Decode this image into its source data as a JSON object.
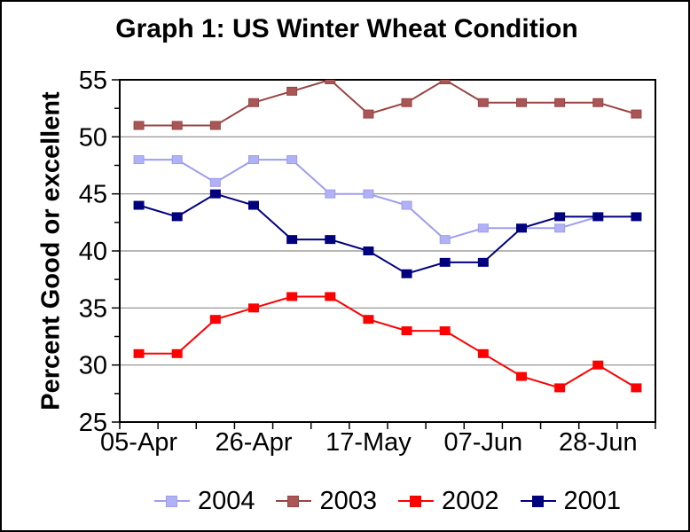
{
  "window": {
    "background": "#ffffff",
    "border_color": "#000000"
  },
  "chart_data": {
    "type": "line",
    "title": "Graph 1: US Winter Wheat Condition",
    "ylabel": "Percent Good or excellent",
    "xlabel": "",
    "ylim": [
      25,
      55
    ],
    "y_major_step": 5,
    "y_minor_step": 2.5,
    "n_points": 14,
    "x_tick_labels": [
      "05-Apr",
      "26-Apr",
      "17-May",
      "07-Jun",
      "28-Jun"
    ],
    "x_tick_indices": [
      0,
      3,
      6,
      9,
      12
    ],
    "grid": "horizontal major gridlines only",
    "gridline_color": "#8c8c8c",
    "axis_color": "#000000",
    "legend_position": "bottom",
    "series": [
      {
        "name": "2004",
        "color": "#9d9df0",
        "marker_fill": "#b1b1f6",
        "values": [
          48,
          48,
          46,
          48,
          48,
          45,
          45,
          44,
          41,
          42,
          42,
          42,
          43,
          null
        ]
      },
      {
        "name": "2003",
        "color": "#9a4343",
        "marker_fill": "#a85656",
        "values": [
          51,
          51,
          51,
          53,
          54,
          55,
          52,
          53,
          55,
          53,
          53,
          53,
          53,
          52
        ]
      },
      {
        "name": "2002",
        "color": "#fe0000",
        "marker_fill": "#fe0000",
        "values": [
          31,
          31,
          34,
          35,
          36,
          36,
          34,
          33,
          33,
          31,
          29,
          28,
          30,
          28
        ]
      },
      {
        "name": "2001",
        "color": "#00007e",
        "marker_fill": "#00007e",
        "values": [
          44,
          43,
          45,
          44,
          41,
          41,
          40,
          38,
          39,
          39,
          42,
          43,
          43,
          43
        ]
      }
    ]
  }
}
